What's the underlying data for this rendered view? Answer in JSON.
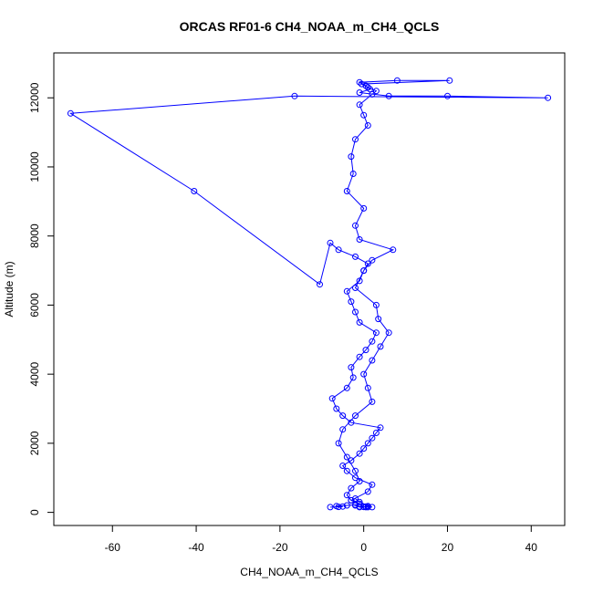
{
  "chart_data": {
    "type": "line",
    "title": "ORCAS RF01-6 CH4_NOAA_m_CH4_QCLS",
    "xlabel": "CH4_NOAA_m_CH4_QCLS",
    "ylabel": "Altitude (m)",
    "xlim": [
      -74,
      48
    ],
    "ylim": [
      -380,
      13300
    ],
    "xticks": [
      -60,
      -40,
      -20,
      0,
      20,
      40
    ],
    "yticks": [
      0,
      2000,
      4000,
      6000,
      8000,
      10000,
      12000
    ],
    "grid": false,
    "legend": "none",
    "color": "#0000ff",
    "markers": "open circles",
    "series": [
      {
        "x": [
          -8,
          -6,
          -5,
          -6.5,
          -4,
          -2,
          -1,
          0,
          0.5,
          1,
          2,
          -1,
          -2,
          -3,
          1,
          2,
          -2,
          -4,
          -5,
          -3,
          -1,
          0,
          1,
          2,
          3,
          4,
          -3,
          -5,
          -6.5,
          -7.5,
          -4,
          -2.5,
          -3,
          -1,
          0.5,
          2,
          3,
          -1,
          -2,
          -3,
          -4,
          -1,
          0,
          1,
          -2,
          -6,
          -8,
          -10.5,
          -40.5,
          -70,
          -16.5,
          44,
          20,
          6,
          -1,
          1.5,
          0.5,
          -1,
          8,
          20.5,
          -0.5,
          1,
          3,
          2,
          -1,
          0,
          1,
          -2,
          -3,
          -2.5,
          -4,
          0,
          -2,
          -1,
          7,
          2,
          0,
          -2,
          3,
          3.5,
          6,
          4,
          2,
          0,
          1,
          2,
          -2,
          -5,
          -6,
          -4,
          -2,
          -1,
          -3,
          -4,
          -3,
          -1,
          -2,
          -1,
          0,
          0.5,
          1
        ],
        "y": [
          150,
          160,
          170,
          180,
          200,
          220,
          150,
          160,
          170,
          180,
          150,
          300,
          400,
          350,
          600,
          800,
          1000,
          1200,
          1350,
          1500,
          1700,
          1850,
          2000,
          2150,
          2300,
          2450,
          2600,
          2800,
          3000,
          3300,
          3600,
          3900,
          4200,
          4500,
          4700,
          4950,
          5200,
          5500,
          5800,
          6100,
          6400,
          6700,
          7000,
          7200,
          7400,
          7600,
          7800,
          6600,
          9300,
          11550,
          12050,
          12000,
          12050,
          12050,
          12150,
          12250,
          12350,
          12450,
          12500,
          12500,
          12400,
          12300,
          12200,
          12100,
          11800,
          11500,
          11200,
          10800,
          10300,
          9800,
          9300,
          8800,
          8300,
          7900,
          7600,
          7300,
          7000,
          6500,
          6000,
          5600,
          5200,
          4800,
          4400,
          4000,
          3600,
          3200,
          2800,
          2400,
          2000,
          1600,
          1200,
          900,
          700,
          500,
          350,
          250,
          200,
          170,
          160,
          150,
          150
        ]
      }
    ]
  }
}
